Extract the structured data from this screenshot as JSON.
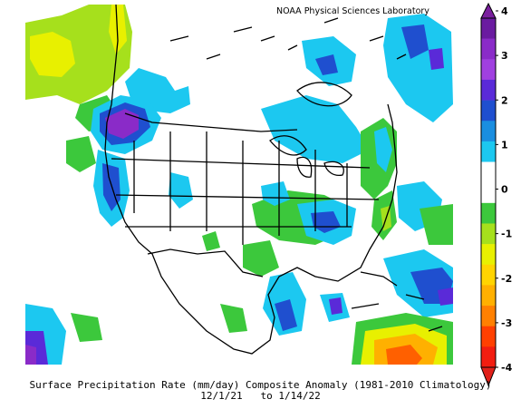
{
  "credit": "NOAA Physical Sciences Laboratory",
  "caption": {
    "line1": "Surface Precipitation Rate (mm/day) Composite Anomaly (1981-2010 Climatology)",
    "line2": "12/1/21   to 1/14/22"
  },
  "colorbar": {
    "unit": "mm/day",
    "ticks": [
      "4",
      "3",
      "2",
      "1",
      "0",
      "-1",
      "-2",
      "-3",
      "-4"
    ],
    "colors": [
      "#6a1ba0",
      "#8a2bc8",
      "#a040e0",
      "#5a2ad8",
      "#1f4fcf",
      "#1a8ee0",
      "#1cc8f0",
      "#ffffff",
      "#ffffff",
      "#3cc83c",
      "#a6e01c",
      "#e8f000",
      "#ffd400",
      "#ffb000",
      "#ff8000",
      "#ff4000",
      "#f21d10"
    ],
    "arrow_top_color": "#7a1f9e",
    "arrow_bottom_color": "#e0201a"
  },
  "map": {
    "region": "North America",
    "colors": {
      "background": "#ffffff",
      "purple": "#8a2bc8",
      "violet": "#5a2ad8",
      "blue": "#1f4fcf",
      "medium_blue": "#1a8ee0",
      "cyan": "#1cc8f0",
      "green": "#3cc83c",
      "yellow_green": "#a6e01c",
      "yellow": "#e8f000",
      "orange": "#ffb000",
      "red_orange": "#ff6000",
      "outline": "#000000"
    }
  }
}
